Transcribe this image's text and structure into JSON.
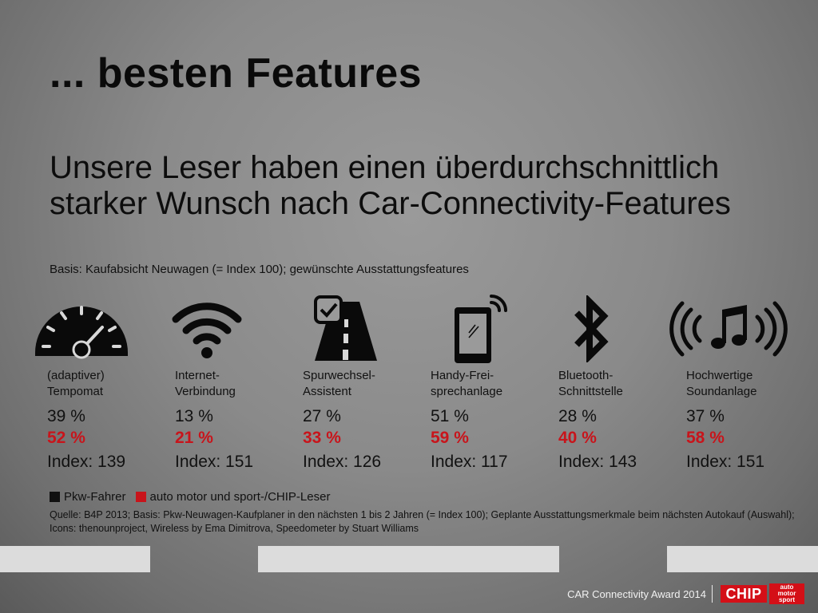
{
  "title": "... besten Features",
  "subtitle": "Unsere Leser haben einen überdurchschnittlich starker Wunsch nach Car-Connectivity-Features",
  "basis": "Basis: Kaufabsicht Neuwagen (= Index 100); gewünschte Ausstattungsfeatures",
  "features": [
    {
      "icon": "speedometer-icon",
      "label1": "(adaptiver)",
      "label2": "Tempomat",
      "pkw": "39 %",
      "leser": "52 %",
      "index": "Index: 139"
    },
    {
      "icon": "wifi-icon",
      "label1": "Internet-",
      "label2": "Verbindung",
      "pkw": "13 %",
      "leser": "21 %",
      "index": "Index: 151"
    },
    {
      "icon": "lane-assist-icon",
      "label1": "Spurwechsel-",
      "label2": "Assistent",
      "pkw": "27 %",
      "leser": "33 %",
      "index": "Index: 126"
    },
    {
      "icon": "phone-icon",
      "label1": "Handy-Frei-",
      "label2": "sprechanlage",
      "pkw": "51 %",
      "leser": "59 %",
      "index": "Index: 117"
    },
    {
      "icon": "bluetooth-icon",
      "label1": "Bluetooth-",
      "label2": "Schnittstelle",
      "pkw": "28 %",
      "leser": "40 %",
      "index": "Index: 143"
    },
    {
      "icon": "sound-icon",
      "label1": "Hochwertige",
      "label2": "Soundanlage",
      "pkw": "37 %",
      "leser": "58 %",
      "index": "Index: 151"
    }
  ],
  "legend": {
    "pkw": "Pkw-Fahrer",
    "leser": "auto motor und sport-/CHIP-Leser",
    "pkw_color": "#111111",
    "leser_color": "#c8141b"
  },
  "source": "Quelle: B4P 2013; Basis:  Pkw-Neuwagen-Kaufplaner in den nächsten 1 bis 2 Jahren (= Index 100); Geplante Ausstattungsmerkmale beim nächsten Autokauf (Auswahl); Icons: thenounproject, Wireless by Ema Dimitrova, Speedometer by Stuart Williams",
  "footer": {
    "award": "CAR Connectivity Award 2014",
    "chip_logo": "CHIP",
    "ams_logo": [
      "auto",
      "motor",
      "sport"
    ]
  }
}
